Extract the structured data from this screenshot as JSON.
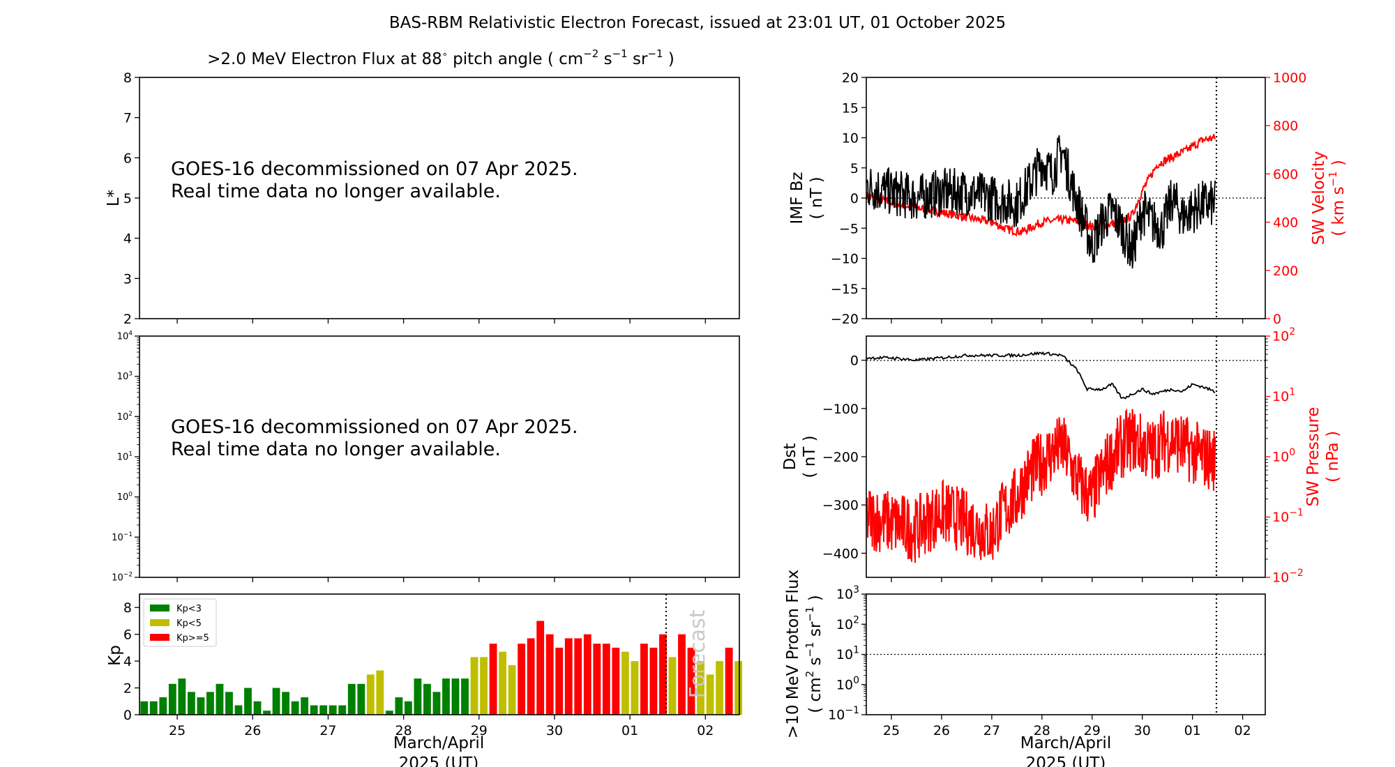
{
  "figure": {
    "title": "BAS-RBM Relativistic Electron Forecast, issued at 23:01 UT, 01 October 2025",
    "date_ticks": [
      "25",
      "26",
      "27",
      "28",
      "29",
      "30",
      "01",
      "02"
    ],
    "xlabel_line1": "March/April",
    "xlabel_line2": "2025 (UT)",
    "forecast_boundary_day": 7.5,
    "x_range_days": [
      24.5,
      32.45
    ]
  },
  "panel_flux": {
    "title_prefix": ">2.0 MeV Electron Flux at 88",
    "title_degree": "∘",
    "title_mid": " pitch angle ( cm",
    "title_cm_exp": "−2",
    "title_s": " s",
    "title_s_exp": "−1",
    "title_sr": " sr",
    "title_sr_exp": "−1",
    "title_end": " )",
    "ylabel": "L*",
    "yticks": [
      "2",
      "3",
      "4",
      "5",
      "6",
      "7",
      "8"
    ],
    "notice_line1": "GOES-16 decommissioned on 07 Apr 2025.",
    "notice_line2": "Real time data no longer available."
  },
  "panel_geo": {
    "ytick_bases": [
      "10",
      "10",
      "10",
      "10",
      "10",
      "10",
      "10"
    ],
    "ytick_exps": [
      "−2",
      "−1",
      "0",
      "1",
      "2",
      "3",
      "4"
    ],
    "notice_line1": "GOES-16 decommissioned on 07 Apr 2025.",
    "notice_line2": "Real time data no longer available."
  },
  "panel_kp": {
    "ylabel": "Kp",
    "yticks": [
      "0",
      "2",
      "4",
      "6",
      "8"
    ],
    "legend": [
      {
        "label": "Kp<3",
        "color": "#008000"
      },
      {
        "label": "Kp<5",
        "color": "#bfbf00"
      },
      {
        "label": "Kp>=5",
        "color": "#ff0000"
      }
    ],
    "forecast_label": "Forecast"
  },
  "panel_bz": {
    "ylabel_line1": "IMF Bz",
    "ylabel_line2": "( nT )",
    "yticks": [
      "−20",
      "−15",
      "−10",
      "−5",
      "0",
      "5",
      "10",
      "15",
      "20"
    ],
    "right_ylabel_line1": "SW Velocity",
    "right_ylabel_line2_pre": "( km s",
    "right_ylabel_line2_exp": "−1",
    "right_ylabel_line2_end": " )",
    "right_yticks": [
      "0",
      "200",
      "400",
      "600",
      "800",
      "1000"
    ]
  },
  "panel_dst": {
    "ylabel_line1": "Dst",
    "ylabel_line2": "( nT )",
    "yticks": [
      "−400",
      "−300",
      "−200",
      "−100",
      "0"
    ],
    "right_ylabel_line1": "SW Pressure",
    "right_ylabel_line2": "( nPa )",
    "right_ytick_bases": [
      "10",
      "10",
      "10",
      "10",
      "10"
    ],
    "right_ytick_exps": [
      "−2",
      "−1",
      "0",
      "1",
      "2"
    ]
  },
  "panel_proton": {
    "ylabel_line1": ">10 MeV Proton Flux",
    "ylabel_line2_a": "( cm",
    "ylabel_line2_a_exp": "2",
    "ylabel_line2_b": " s",
    "ylabel_line2_b_exp": "−1",
    "ylabel_line2_c": " sr",
    "ylabel_line2_c_exp": "−1",
    "ylabel_line2_d": " )",
    "ytick_bases": [
      "10",
      "10",
      "10",
      "10",
      "10"
    ],
    "ytick_exps": [
      "−1",
      "0",
      "1",
      "2",
      "3"
    ],
    "threshold_value": 10
  },
  "chart_data": [
    {
      "type": "line",
      "title": ">2.0 MeV Electron Flux at 88° pitch angle ( cm−2 s−1 sr−1 )",
      "ylabel": "L*",
      "ylim": [
        2,
        8
      ],
      "series": []
    },
    {
      "type": "line",
      "ylim": [
        0.01,
        10000
      ],
      "yscale": "log",
      "series": []
    },
    {
      "type": "bar",
      "ylabel": "Kp",
      "ylim": [
        0,
        9
      ],
      "x_unit": "day",
      "x_start_day": 24.5,
      "bin_days": 0.125,
      "values": [
        1.0,
        1.0,
        1.3,
        2.3,
        2.7,
        1.7,
        1.3,
        1.7,
        2.3,
        1.7,
        0.7,
        2.0,
        1.0,
        0.3,
        2.0,
        1.7,
        1.0,
        1.3,
        0.7,
        0.7,
        0.7,
        0.7,
        2.3,
        2.3,
        3.0,
        3.3,
        0.3,
        1.3,
        1.0,
        2.7,
        2.3,
        1.7,
        2.7,
        2.7,
        2.7,
        4.3,
        4.3,
        5.3,
        4.7,
        3.7,
        5.3,
        5.7,
        7.0,
        6.0,
        5.0,
        5.7,
        5.7,
        6.0,
        5.3,
        5.3,
        5.0,
        4.7,
        4.0,
        5.3,
        5.0,
        6.0,
        4.3,
        6.0,
        5.0,
        4.0,
        3.0,
        4.0,
        5.0,
        4.0
      ],
      "forecast_from_index": 56,
      "legend": [
        "Kp<3",
        "Kp<5",
        "Kp>=5"
      ]
    },
    {
      "type": "line",
      "ylabel": "IMF Bz ( nT )",
      "ylim": [
        -20,
        20
      ],
      "x_unit": "day",
      "y2label": "SW Velocity ( km s−1 )",
      "y2lim": [
        0,
        1000
      ],
      "series": [
        {
          "name": "IMF Bz",
          "color": "#000000",
          "axis": "left",
          "x": [
            24.5,
            25.0,
            25.5,
            26.0,
            26.5,
            27.0,
            27.5,
            27.8,
            28.0,
            28.2,
            28.4,
            28.6,
            28.8,
            29.0,
            29.2,
            29.4,
            29.6,
            29.8,
            30.0,
            30.2,
            30.4,
            30.6,
            30.8,
            31.0,
            31.2,
            31.45
          ],
          "y": [
            2,
            1,
            0,
            1,
            1,
            0,
            -1,
            3,
            6,
            4,
            8,
            2,
            -3,
            -8,
            -4,
            -2,
            -5,
            -9,
            -2,
            -4,
            -5,
            0,
            -3,
            -2,
            -1,
            -1
          ]
        },
        {
          "name": "SW Velocity",
          "color": "#ff0000",
          "axis": "right",
          "x": [
            24.5,
            25.0,
            25.5,
            26.0,
            26.5,
            27.0,
            27.3,
            27.6,
            28.0,
            28.4,
            28.8,
            29.0,
            29.3,
            29.6,
            29.8,
            30.0,
            30.3,
            30.6,
            30.9,
            31.2,
            31.45
          ],
          "y": [
            510,
            480,
            460,
            440,
            420,
            400,
            370,
            360,
            400,
            410,
            400,
            380,
            390,
            400,
            430,
            530,
            640,
            670,
            700,
            740,
            750
          ]
        }
      ],
      "forecast_boundary_day": 31.5
    },
    {
      "type": "line",
      "ylabel": "Dst ( nT )",
      "ylim": [
        -450,
        50
      ],
      "x_unit": "day",
      "y2label": "SW Pressure ( nPa )",
      "y2lim": [
        0.01,
        100
      ],
      "y2scale": "log",
      "series": [
        {
          "name": "Dst",
          "color": "#000000",
          "axis": "left",
          "x": [
            24.5,
            25.0,
            25.5,
            26.0,
            26.5,
            27.0,
            27.5,
            28.0,
            28.4,
            28.7,
            28.9,
            29.2,
            29.4,
            29.6,
            29.8,
            30.0,
            30.2,
            30.4,
            30.6,
            30.8,
            31.0,
            31.2,
            31.45
          ],
          "y": [
            5,
            5,
            0,
            5,
            10,
            10,
            10,
            15,
            10,
            -20,
            -60,
            -60,
            -50,
            -80,
            -70,
            -60,
            -70,
            -65,
            -60,
            -65,
            -50,
            -55,
            -65
          ]
        },
        {
          "name": "SW Pressure",
          "color": "#ff0000",
          "axis": "right",
          "x": [
            24.5,
            25.0,
            25.5,
            26.0,
            26.5,
            27.0,
            27.5,
            28.0,
            28.4,
            28.6,
            28.8,
            29.0,
            29.2,
            29.4,
            29.6,
            29.8,
            30.0,
            30.2,
            30.4,
            30.6,
            30.8,
            31.0,
            31.2,
            31.45
          ],
          "y": [
            0.1,
            0.08,
            0.06,
            0.12,
            0.08,
            0.05,
            0.2,
            0.8,
            1.5,
            0.6,
            0.3,
            0.2,
            0.5,
            1.0,
            1.5,
            2.0,
            1.5,
            1.2,
            1.8,
            2.0,
            1.5,
            1.2,
            1.0,
            0.9
          ]
        }
      ],
      "forecast_boundary_day": 31.5
    },
    {
      "type": "line",
      "ylabel": ">10 MeV Proton Flux ( cm2 s−1 sr−1 )",
      "ylim": [
        0.1,
        1000
      ],
      "yscale": "log",
      "x_unit": "day",
      "series": [],
      "threshold": 10,
      "forecast_boundary_day": 31.5
    }
  ]
}
